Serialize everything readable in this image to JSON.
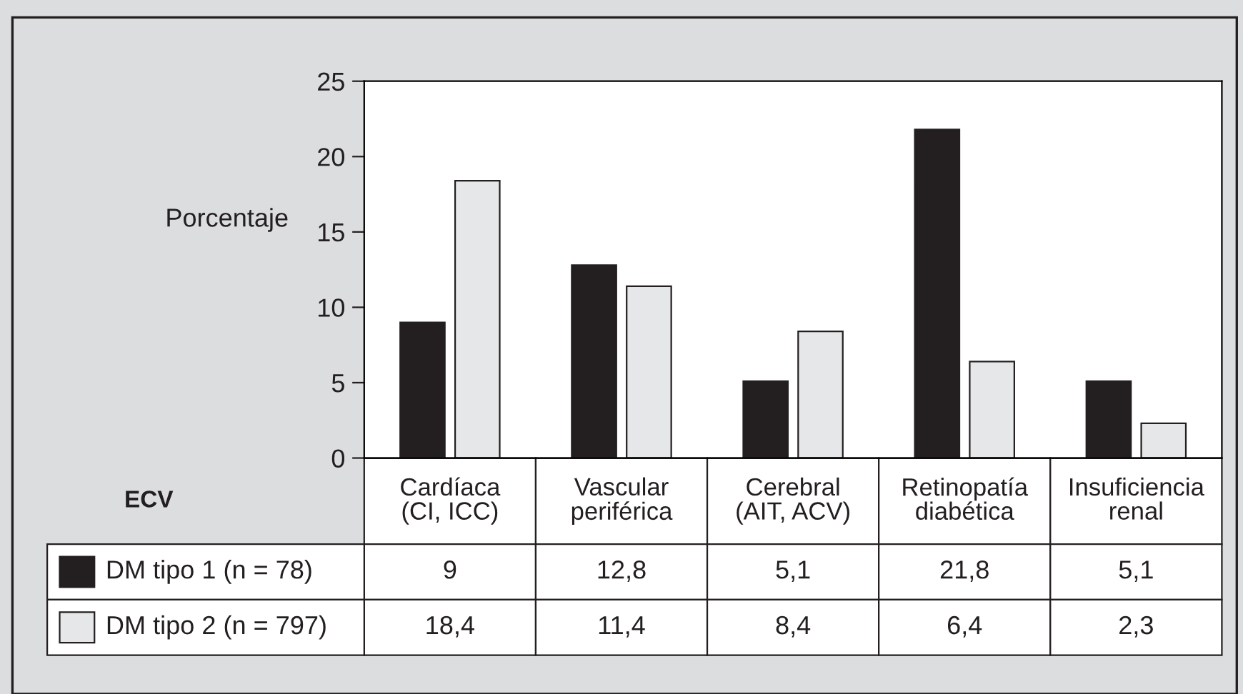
{
  "chart_data": {
    "type": "bar",
    "ylabel": "Porcentaje",
    "annotations": [
      "ECV"
    ],
    "categories": [
      "Cardíaca\n(CI, ICC)",
      "Vascular\nperiférica",
      "Cerebral\n(AIT, ACV)",
      "Retinopatía\ndiabética",
      "Insuficiencia\nrenal"
    ],
    "series": [
      {
        "name": "DM tipo 1 (n = 78)",
        "color": "#231f20",
        "values": [
          9,
          12.8,
          5.1,
          21.8,
          5.1
        ],
        "value_labels": [
          "9",
          "12,8",
          "5,1",
          "21,8",
          "5,1"
        ]
      },
      {
        "name": "DM tipo 2 (n = 797)",
        "color": "#e6e7e8",
        "values": [
          18.4,
          11.4,
          8.4,
          6.4,
          2.3
        ],
        "value_labels": [
          "18,4",
          "11,4",
          "8,4",
          "6,4",
          "2,3"
        ]
      }
    ],
    "ylim": [
      0,
      25
    ],
    "yticks": [
      0,
      5,
      10,
      15,
      20,
      25
    ],
    "grid": false,
    "legend": "bottom"
  }
}
